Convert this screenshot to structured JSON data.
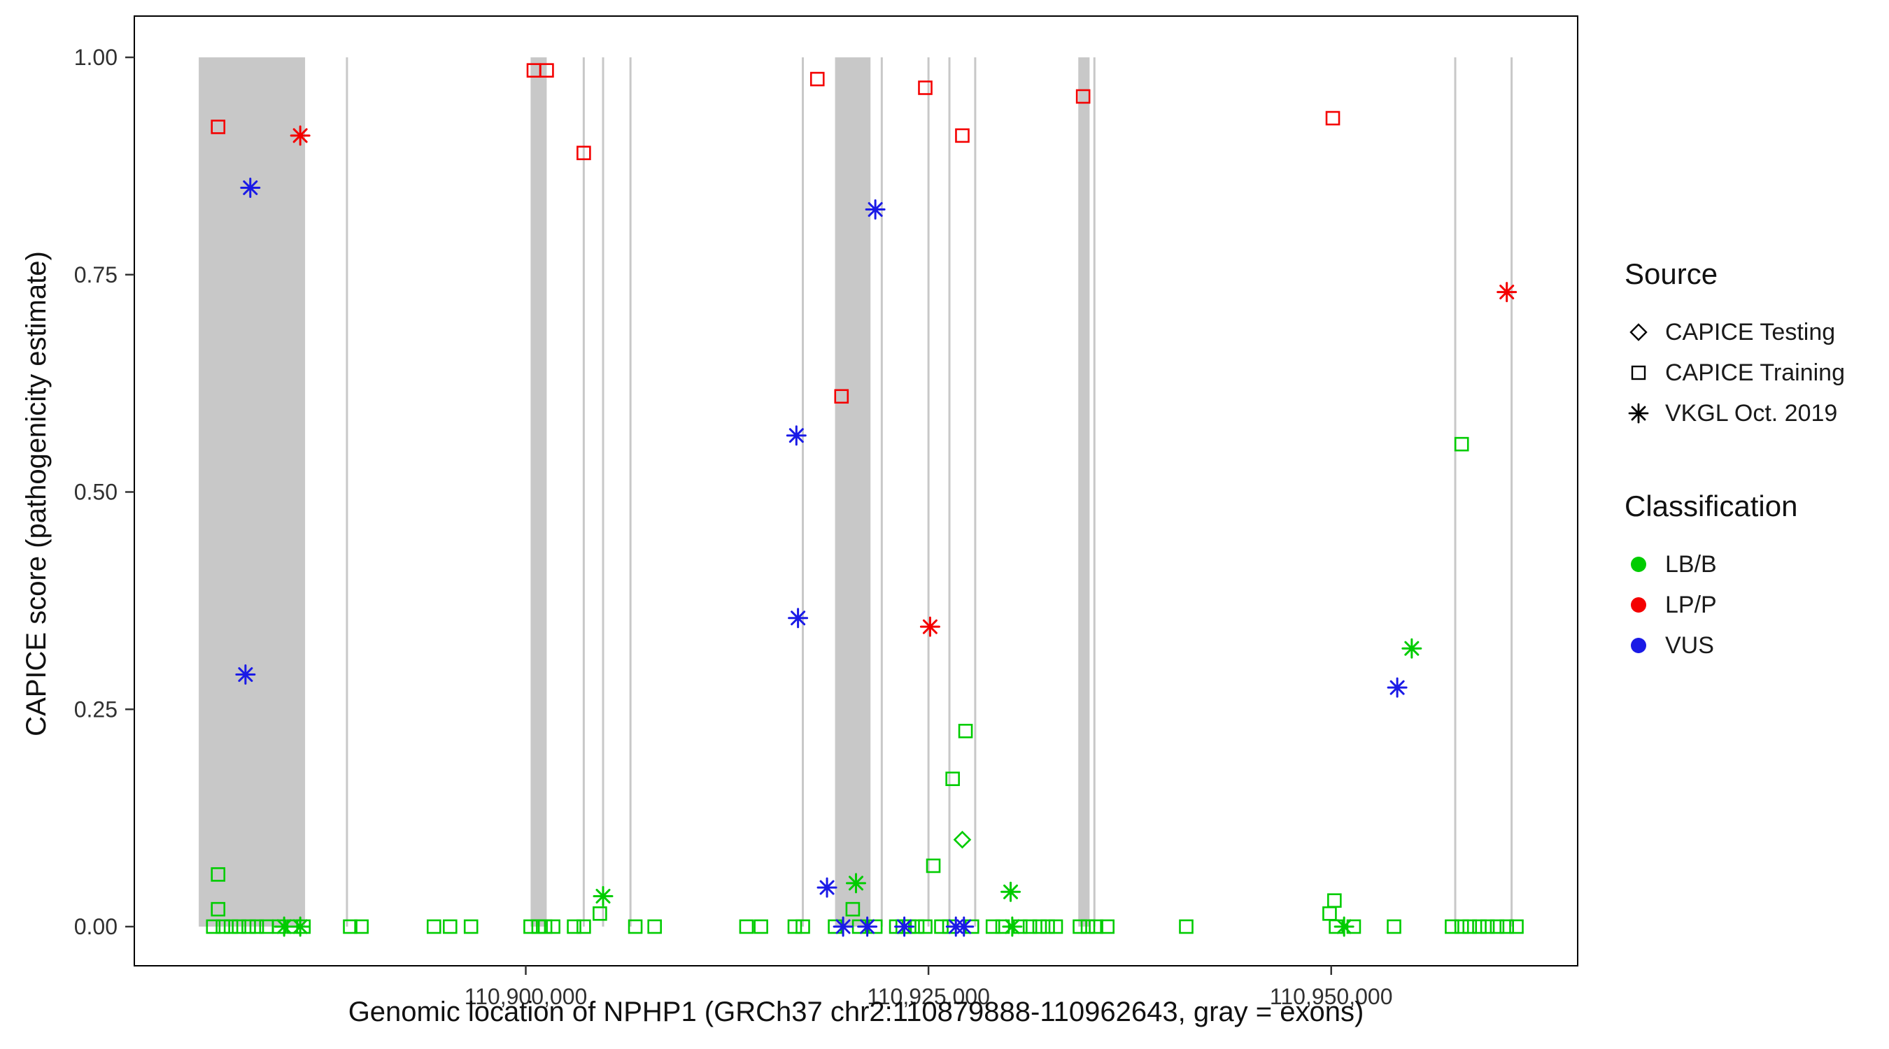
{
  "chart_data": {
    "type": "scatter",
    "title": "",
    "xlabel": "Genomic location of NPHP1 (GRCh37 chr2:110879888-110962643, gray = exons)",
    "ylabel": "CAPICE score (pathogenicity estimate)",
    "x_domain": [
      110875700,
      110965300
    ],
    "y_domain": [
      0,
      1.0
    ],
    "grid": "off",
    "legend_position": "right",
    "x_ticks": [
      {
        "value": 110900000,
        "label": "110,900,000"
      },
      {
        "value": 110925000,
        "label": "110,925,000"
      },
      {
        "value": 110950000,
        "label": "110,950,000"
      }
    ],
    "y_ticks": [
      {
        "value": 0.0,
        "label": "0.00"
      },
      {
        "value": 0.25,
        "label": "0.25"
      },
      {
        "value": 0.5,
        "label": "0.50"
      },
      {
        "value": 0.75,
        "label": "0.75"
      },
      {
        "value": 1.0,
        "label": "1.00"
      }
    ],
    "exon_color": "#C8C8C8",
    "exon_bands": [
      [
        110879700,
        110886300
      ],
      [
        110900300,
        110901300
      ],
      [
        110919200,
        110921400
      ],
      [
        110934300,
        110935000
      ]
    ],
    "exon_lines": [
      110888900,
      110903600,
      110904800,
      110906500,
      110917200,
      110922100,
      110925000,
      110926300,
      110927900,
      110935300,
      110957700,
      110961200
    ],
    "cls_key": {
      "B": "LB/B",
      "P": "LP/P",
      "V": "VUS"
    },
    "shape_key": {
      "s": "square = CAPICE Training",
      "d": "diamond = CAPICE Testing",
      "a": "asterisk = VKGL Oct. 2019"
    },
    "points": [
      [
        110880900,
        0.92,
        "P",
        "s"
      ],
      [
        110886000,
        0.91,
        "P",
        "a"
      ],
      [
        110882900,
        0.85,
        "V",
        "a"
      ],
      [
        110882600,
        0.29,
        "V",
        "a"
      ],
      [
        110880900,
        0.06,
        "B",
        "s"
      ],
      [
        110880900,
        0.02,
        "B",
        "s"
      ],
      [
        110900500,
        0.985,
        "P",
        "s"
      ],
      [
        110901300,
        0.985,
        "P",
        "s"
      ],
      [
        110903600,
        0.89,
        "P",
        "s"
      ],
      [
        110904800,
        0.035,
        "B",
        "a"
      ],
      [
        110904600,
        0.015,
        "B",
        "s"
      ],
      [
        110918100,
        0.975,
        "P",
        "s"
      ],
      [
        110916800,
        0.565,
        "V",
        "a"
      ],
      [
        110916900,
        0.355,
        "V",
        "a"
      ],
      [
        110919600,
        0.61,
        "P",
        "s"
      ],
      [
        110921700,
        0.825,
        "V",
        "a"
      ],
      [
        110920500,
        0.05,
        "B",
        "a"
      ],
      [
        110918700,
        0.045,
        "V",
        "a"
      ],
      [
        110924800,
        0.965,
        "P",
        "s"
      ],
      [
        110927100,
        0.91,
        "P",
        "s"
      ],
      [
        110925100,
        0.345,
        "P",
        "a"
      ],
      [
        110927300,
        0.225,
        "B",
        "s"
      ],
      [
        110926500,
        0.17,
        "B",
        "s"
      ],
      [
        110925300,
        0.07,
        "B",
        "s"
      ],
      [
        110927100,
        0.1,
        "B",
        "d"
      ],
      [
        110930100,
        0.04,
        "B",
        "a"
      ],
      [
        110934600,
        0.955,
        "P",
        "s"
      ],
      [
        110950100,
        0.93,
        "P",
        "s"
      ],
      [
        110950200,
        0.03,
        "B",
        "s"
      ],
      [
        110949900,
        0.015,
        "B",
        "s"
      ],
      [
        110920300,
        0.02,
        "B",
        "s"
      ],
      [
        110958100,
        0.555,
        "B",
        "s"
      ],
      [
        110955000,
        0.32,
        "B",
        "a"
      ],
      [
        110954100,
        0.275,
        "V",
        "a"
      ],
      [
        110960900,
        0.73,
        "P",
        "a"
      ],
      [
        110880600,
        0,
        "B",
        "s"
      ],
      [
        110881200,
        0,
        "B",
        "s"
      ],
      [
        110881700,
        0,
        "B",
        "s"
      ],
      [
        110882200,
        0,
        "B",
        "s"
      ],
      [
        110882800,
        0,
        "B",
        "s"
      ],
      [
        110883300,
        0,
        "B",
        "s"
      ],
      [
        110883900,
        0,
        "B",
        "s"
      ],
      [
        110884700,
        0,
        "B",
        "s"
      ],
      [
        110885600,
        0,
        "B",
        "s"
      ],
      [
        110886200,
        0,
        "B",
        "s"
      ],
      [
        110885000,
        0,
        "B",
        "a"
      ],
      [
        110886000,
        0,
        "B",
        "a"
      ],
      [
        110889100,
        0,
        "B",
        "s"
      ],
      [
        110889800,
        0,
        "B",
        "s"
      ],
      [
        110894300,
        0,
        "B",
        "s"
      ],
      [
        110895300,
        0,
        "B",
        "s"
      ],
      [
        110896600,
        0,
        "B",
        "s"
      ],
      [
        110900300,
        0,
        "B",
        "s"
      ],
      [
        110900800,
        0,
        "B",
        "s"
      ],
      [
        110901200,
        0,
        "B",
        "s"
      ],
      [
        110901700,
        0,
        "B",
        "s"
      ],
      [
        110903000,
        0,
        "B",
        "s"
      ],
      [
        110903600,
        0,
        "B",
        "s"
      ],
      [
        110906800,
        0,
        "B",
        "s"
      ],
      [
        110908000,
        0,
        "B",
        "s"
      ],
      [
        110913700,
        0,
        "B",
        "s"
      ],
      [
        110914600,
        0,
        "B",
        "s"
      ],
      [
        110916700,
        0,
        "B",
        "s"
      ],
      [
        110917200,
        0,
        "B",
        "s"
      ],
      [
        110919200,
        0,
        "B",
        "s"
      ],
      [
        110920700,
        0,
        "B",
        "s"
      ],
      [
        110921700,
        0,
        "B",
        "s"
      ],
      [
        110919700,
        0,
        "V",
        "a"
      ],
      [
        110921200,
        0,
        "V",
        "a"
      ],
      [
        110923000,
        0,
        "B",
        "s"
      ],
      [
        110923400,
        0,
        "B",
        "s"
      ],
      [
        110923800,
        0,
        "B",
        "s"
      ],
      [
        110924300,
        0,
        "B",
        "s"
      ],
      [
        110924800,
        0,
        "B",
        "s"
      ],
      [
        110923500,
        0,
        "V",
        "a"
      ],
      [
        110925800,
        0,
        "B",
        "s"
      ],
      [
        110926300,
        0,
        "B",
        "s"
      ],
      [
        110927700,
        0,
        "B",
        "s"
      ],
      [
        110926700,
        0,
        "V",
        "a"
      ],
      [
        110927200,
        0,
        "V",
        "a"
      ],
      [
        110929000,
        0,
        "B",
        "s"
      ],
      [
        110929600,
        0,
        "B",
        "s"
      ],
      [
        110930700,
        0,
        "B",
        "s"
      ],
      [
        110931300,
        0,
        "B",
        "s"
      ],
      [
        110931900,
        0,
        "B",
        "s"
      ],
      [
        110932400,
        0,
        "B",
        "s"
      ],
      [
        110932900,
        0,
        "B",
        "s"
      ],
      [
        110930200,
        0,
        "B",
        "a"
      ],
      [
        110934400,
        0,
        "B",
        "s"
      ],
      [
        110934900,
        0,
        "B",
        "s"
      ],
      [
        110935400,
        0,
        "B",
        "s"
      ],
      [
        110936100,
        0,
        "B",
        "s"
      ],
      [
        110941000,
        0,
        "B",
        "s"
      ],
      [
        110950300,
        0,
        "B",
        "s"
      ],
      [
        110951400,
        0,
        "B",
        "s"
      ],
      [
        110950800,
        0,
        "B",
        "a"
      ],
      [
        110953900,
        0,
        "B",
        "s"
      ],
      [
        110957500,
        0,
        "B",
        "s"
      ],
      [
        110958100,
        0,
        "B",
        "s"
      ],
      [
        110958600,
        0,
        "B",
        "s"
      ],
      [
        110959200,
        0,
        "B",
        "s"
      ],
      [
        110959700,
        0,
        "B",
        "s"
      ],
      [
        110960300,
        0,
        "B",
        "s"
      ],
      [
        110960900,
        0,
        "B",
        "s"
      ],
      [
        110961500,
        0,
        "B",
        "s"
      ]
    ]
  },
  "colors": {
    "B": "#00CC00",
    "P": "#F40000",
    "V": "#1A1AE6"
  },
  "axes": {
    "x_title": "Genomic location of NPHP1 (GRCh37 chr2:110879888-110962643, gray = exons)",
    "y_title": "CAPICE score (pathogenicity estimate)"
  },
  "legend": {
    "source_title": "Source",
    "source_items": [
      {
        "label": "CAPICE Testing",
        "shape": "diamond"
      },
      {
        "label": "CAPICE Training",
        "shape": "square"
      },
      {
        "label": "VKGL Oct. 2019",
        "shape": "asterisk"
      }
    ],
    "classification_title": "Classification",
    "classification_items": [
      {
        "label": "LB/B",
        "color": "#00CC00"
      },
      {
        "label": "LP/P",
        "color": "#F40000"
      },
      {
        "label": "VUS",
        "color": "#1A1AE6"
      }
    ]
  }
}
